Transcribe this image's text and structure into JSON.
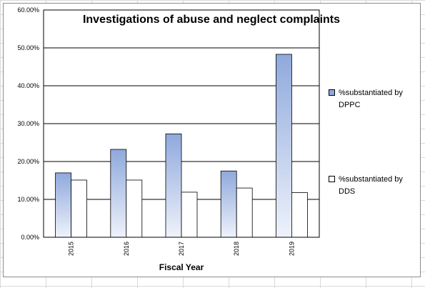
{
  "chart_data": {
    "type": "bar",
    "title": "Investigations of abuse and neglect complaints",
    "xlabel": "Fiscal Year",
    "ylabel": "",
    "categories": [
      "2015",
      "2016",
      "2017",
      "2018",
      "2019"
    ],
    "series": [
      {
        "name": "%substantiated by DPPC",
        "values": [
          17.0,
          23.2,
          27.3,
          17.5,
          48.3
        ]
      },
      {
        "name": "%substantiated by DDS",
        "values": [
          15.1,
          15.1,
          11.9,
          13.0,
          11.8
        ]
      }
    ],
    "ylim": [
      0,
      60
    ],
    "yticks": [
      "0.00%",
      "10.00%",
      "20.00%",
      "30.00%",
      "40.00%",
      "50.00%",
      "60.00%"
    ],
    "grid": true,
    "legend_position": "right",
    "colors": {
      "DPPC_top": "#8fa9dc",
      "DPPC_bottom": "#eef2fb",
      "DDS": "#ffffff"
    }
  },
  "legend": {
    "dppc_line1": "%substantiated by",
    "dppc_line2": "DPPC",
    "dds_line1": "%substantiated by",
    "dds_line2": "DDS"
  }
}
